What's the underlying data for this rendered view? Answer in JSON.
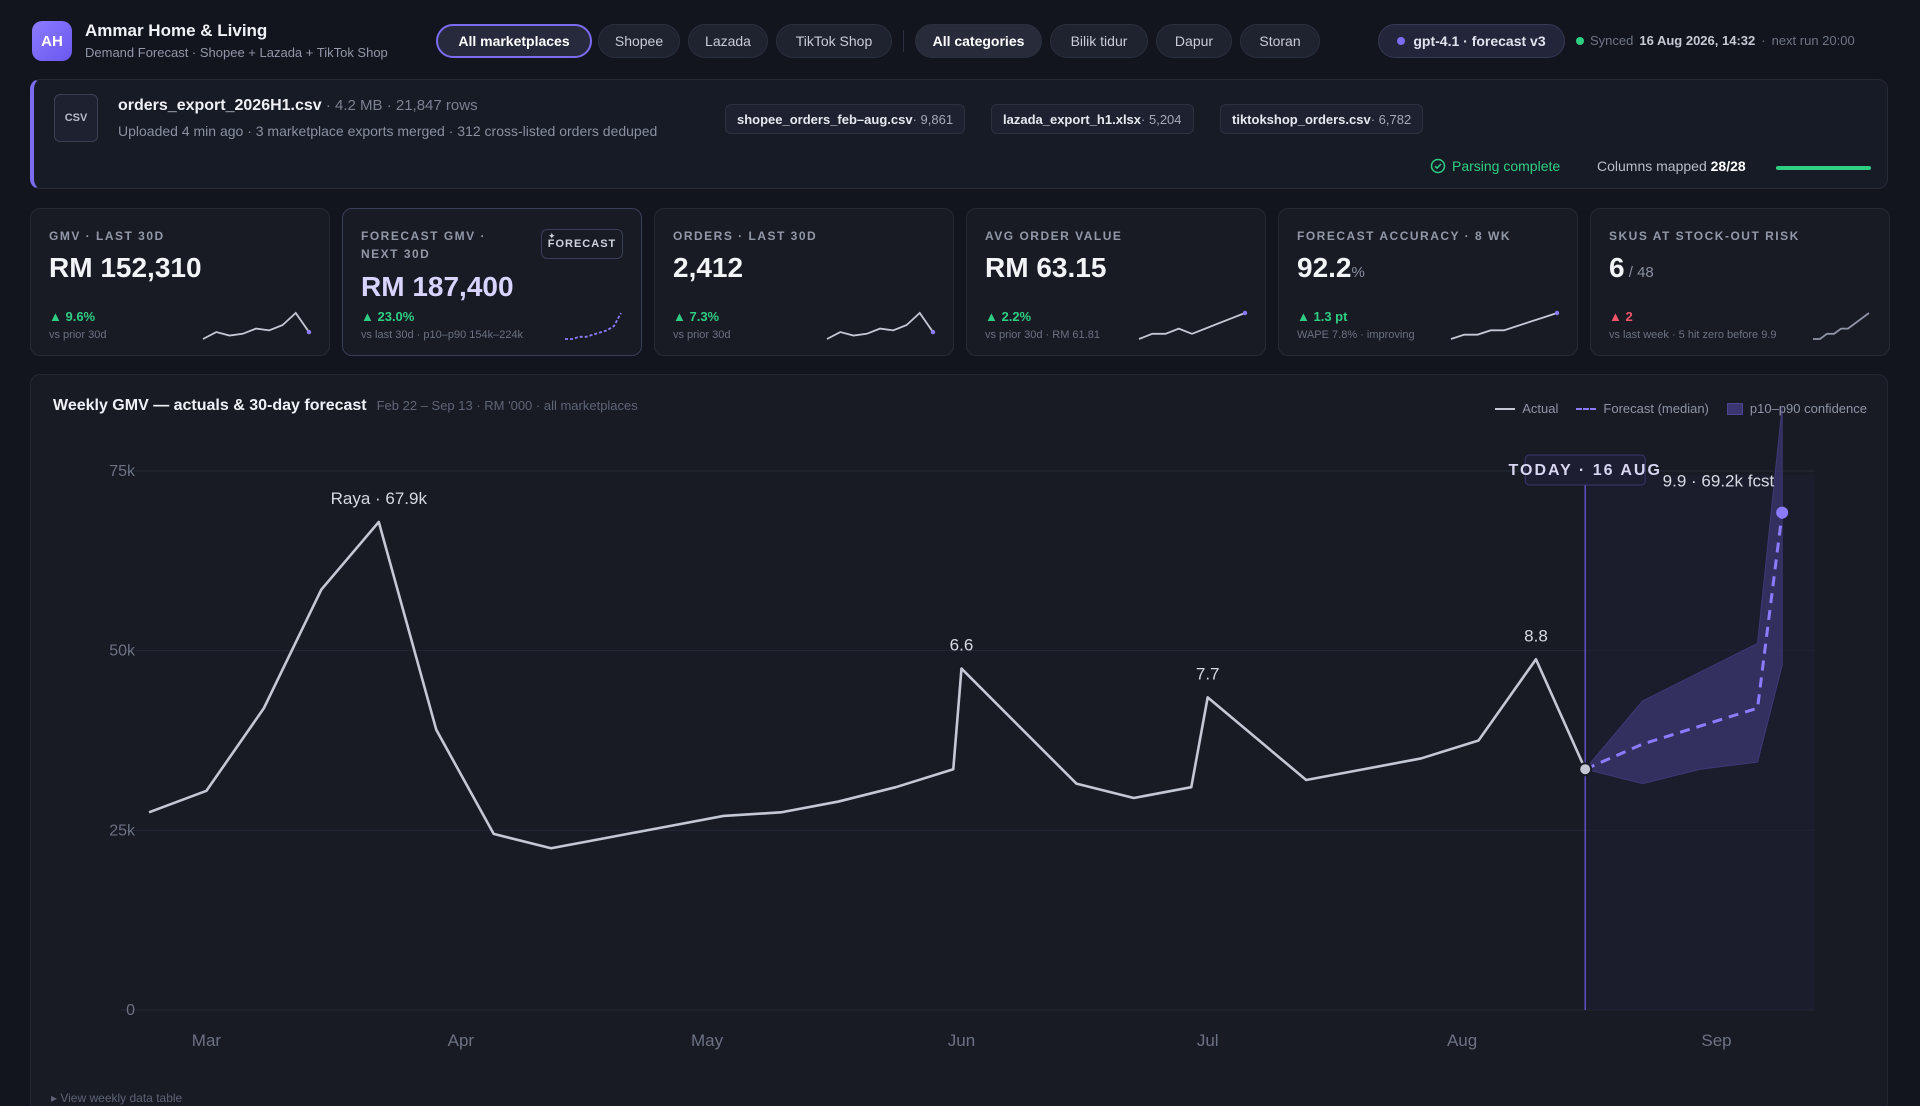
{
  "header": {
    "avatar": "AH",
    "title": "Ammar Home & Living",
    "subtitle": "Demand Forecast · Shopee + Lazada + TikTok Shop",
    "marketplaces": [
      "All marketplaces",
      "Shopee",
      "Lazada",
      "TikTok Shop"
    ],
    "categories": [
      "All categories",
      "Bilik tidur",
      "Dapur",
      "Storan"
    ],
    "model": "gpt-4.1 · forecast v3",
    "sync_prefix": "Synced",
    "sync_time": "16 Aug 2026, 14:32",
    "next_run": "next run 20:00"
  },
  "upload": {
    "icon_label": "CSV",
    "file_name": "orders_export_2026H1.csv",
    "file_meta": " · 4.2 MB · 21,847 rows",
    "sub": "Uploaded 4 min ago · 3 marketplace exports merged · 312 cross-listed orders deduped",
    "sources": [
      {
        "name": "shopee_orders_feb–aug.csv",
        "count": " · 9,861"
      },
      {
        "name": "lazada_export_h1.xlsx",
        "count": " · 5,204"
      },
      {
        "name": "tiktokshop_orders.csv",
        "count": " · 6,782"
      }
    ],
    "parse_status": "Parsing complete",
    "columns_label": "Columns mapped",
    "columns_value": "28/28",
    "columns_fraction": 1.0
  },
  "kpis": [
    {
      "label": "GMV · LAST 30D",
      "value": "RM 152,310",
      "unit": "",
      "delta": "▲ 9.6%",
      "note": "vs prior 30d",
      "spark": [
        40,
        44,
        42,
        43,
        46,
        45,
        48,
        55,
        44
      ]
    },
    {
      "label": "FORECAST GMV · NEXT 30D",
      "badge": "FORECAST",
      "value": "RM 187,400",
      "unit": "",
      "delta": "▲ 23.0%",
      "note": "vs last 30d · p10–p90 154k–224k",
      "spark": [
        40,
        40,
        41,
        41,
        42,
        43,
        44,
        46,
        52
      ]
    },
    {
      "label": "ORDERS · LAST 30D",
      "value": "2,412",
      "unit": "",
      "delta": "▲ 7.3%",
      "note": "vs prior 30d",
      "spark": [
        40,
        44,
        42,
        43,
        46,
        45,
        48,
        55,
        44
      ]
    },
    {
      "label": "AVG ORDER VALUE",
      "value": "RM 63.15",
      "unit": "",
      "delta": "▲ 2.2%",
      "note": "vs prior 30d · RM 61.81",
      "spark": [
        42,
        43,
        43,
        44,
        43,
        44,
        45,
        46,
        47
      ]
    },
    {
      "label": "FORECAST ACCURACY · 8 WK",
      "value": "92.2",
      "unit": "%",
      "delta": "▲ 1.3 pt",
      "note": "WAPE 7.8% · improving",
      "spark": [
        42,
        43,
        43,
        44,
        44,
        45,
        46,
        47,
        48
      ]
    },
    {
      "label": "SKUS AT STOCK-OUT RISK",
      "value": "6",
      "unit": " / 48",
      "delta": "▲ 2",
      "note": "vs last week · 5 hit zero before 9.9",
      "spark": [
        42,
        42,
        43,
        43,
        44,
        44,
        45,
        46,
        47
      ]
    }
  ],
  "chart": {
    "title": "Weekly GMV — actuals & 30-day forecast",
    "meta": "Feb 22 – Sep 13 · RM '000 · all marketplaces",
    "legend": [
      "Actual",
      "Forecast (median)",
      "p10–p90 confidence"
    ],
    "today_label": "TODAY · 16 AUG",
    "view_table": "▸ View weekly data table"
  },
  "chart_data": {
    "type": "line",
    "ylim": [
      0,
      80
    ],
    "yticks": [
      0,
      25,
      50,
      75
    ],
    "ytick_labels": [
      "0",
      "25k",
      "50k",
      "75k"
    ],
    "xtick_labels": [
      "Mar",
      "Apr",
      "May",
      "Jun",
      "Jul",
      "Aug",
      "Sep"
    ],
    "xtick_dates": [
      "2026-03-01",
      "2026-04-01",
      "2026-05-01",
      "2026-06-01",
      "2026-07-01",
      "2026-08-01",
      "2026-09-01"
    ],
    "series": [
      {
        "name": "Actual",
        "points": [
          [
            "2026-02-22",
            27.5
          ],
          [
            "2026-03-01",
            30.5
          ],
          [
            "2026-03-08",
            42
          ],
          [
            "2026-03-15",
            58.5
          ],
          [
            "2026-03-22",
            67.9
          ],
          [
            "2026-03-29",
            39
          ],
          [
            "2026-04-05",
            24.5
          ],
          [
            "2026-04-12",
            22.5
          ],
          [
            "2026-04-19",
            24
          ],
          [
            "2026-04-26",
            25.5
          ],
          [
            "2026-05-03",
            27
          ],
          [
            "2026-05-10",
            27.5
          ],
          [
            "2026-05-17",
            29
          ],
          [
            "2026-05-24",
            31
          ],
          [
            "2026-05-31",
            33.5
          ],
          [
            "2026-06-01",
            47.5
          ],
          [
            "2026-06-15",
            31.5
          ],
          [
            "2026-06-22",
            29.5
          ],
          [
            "2026-06-29",
            31
          ],
          [
            "2026-07-01",
            43.5
          ],
          [
            "2026-07-13",
            32
          ],
          [
            "2026-07-20",
            33.5
          ],
          [
            "2026-07-27",
            35
          ],
          [
            "2026-08-03",
            37.5
          ],
          [
            "2026-08-10",
            48.8
          ],
          [
            "2026-08-16",
            33.5
          ]
        ]
      },
      {
        "name": "Forecast (median)",
        "points": [
          [
            "2026-08-16",
            33.5
          ],
          [
            "2026-08-23",
            37
          ],
          [
            "2026-08-30",
            39.5
          ],
          [
            "2026-09-06",
            42
          ],
          [
            "2026-09-09",
            69.2
          ]
        ]
      },
      {
        "name": "p10–p90 confidence",
        "points": [
          [
            "2026-08-16",
            33.5,
            33.5
          ],
          [
            "2026-08-23",
            31.5,
            43
          ],
          [
            "2026-08-30",
            33.5,
            47
          ],
          [
            "2026-09-06",
            34.5,
            51
          ],
          [
            "2026-09-09",
            48,
            84
          ]
        ]
      }
    ],
    "annotations": [
      {
        "label": "Raya · 67.9k",
        "x": "2026-03-22",
        "y": 67.9
      },
      {
        "label": "6.6",
        "x": "2026-06-01",
        "y": 47.5
      },
      {
        "label": "7.7",
        "x": "2026-07-01",
        "y": 43.5
      },
      {
        "label": "8.8",
        "x": "2026-08-10",
        "y": 48.8
      },
      {
        "label": "9.9 · 69.2k fcst",
        "x": "2026-09-09",
        "y": 69.2
      }
    ],
    "today": "2026-08-16",
    "grid": true
  }
}
